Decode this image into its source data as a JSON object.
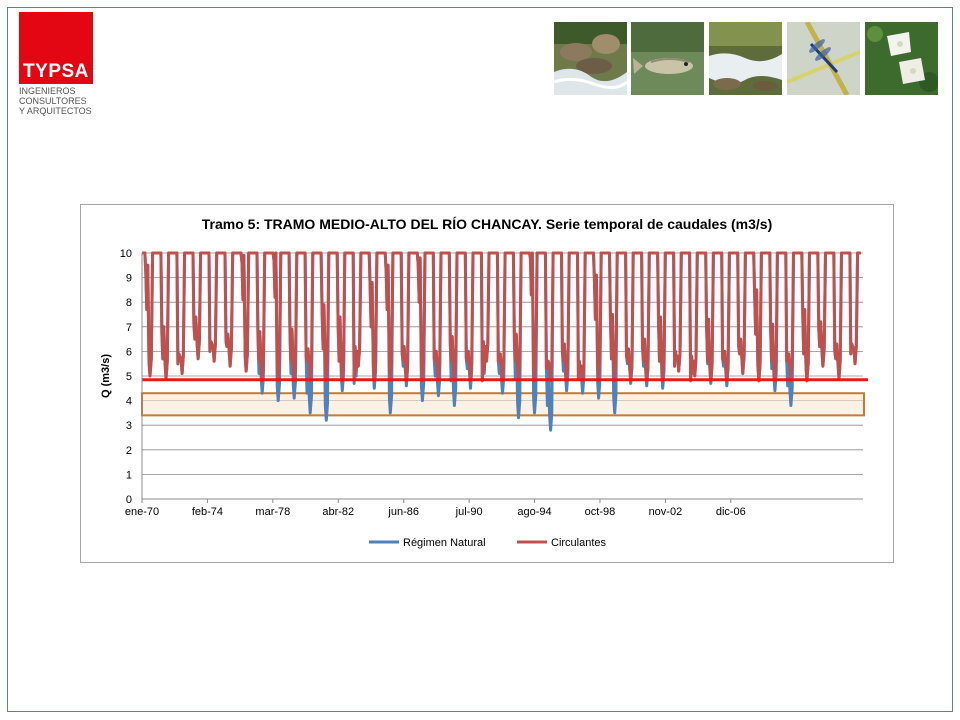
{
  "header": {
    "logo_word": "TYPSA",
    "logo_sub": [
      "INGENIEROS",
      "CONSULTORES",
      "Y ARQUITECTOS"
    ],
    "photos": [
      "river-rocks-photo",
      "fish-photo",
      "stream-rapids-photo",
      "dragonfly-photo",
      "white-flowers-photo"
    ]
  },
  "colors": {
    "logo_red": "#e30613",
    "natural": "#4f81bd",
    "circulantes": "#c0504d",
    "threshold": "#e31b1b",
    "band_edge": "#c97a2b",
    "band_fill": "#fbe3cf"
  },
  "chart_data": {
    "type": "line",
    "title": "Tramo 5: TRAMO MEDIO-ALTO DEL RÍO CHANCAY. Serie temporal de caudales (m3/s)",
    "xlabel": "",
    "ylabel": "Q (m3/s)",
    "ylim": [
      0,
      10
    ],
    "yticks": [
      0,
      1,
      2,
      3,
      4,
      5,
      6,
      7,
      8,
      9,
      10
    ],
    "xticks": [
      "ene-70",
      "feb-74",
      "mar-78",
      "abr-82",
      "jun-86",
      "jul-90",
      "ago-94",
      "oct-98",
      "nov-02",
      "dic-06"
    ],
    "x_range": [
      "ene-70",
      "dic-09"
    ],
    "grid": true,
    "legend": "bottom",
    "threshold_line": 4.85,
    "band": [
      3.4,
      4.3
    ],
    "series": [
      {
        "name": "Régimen Natural",
        "annual_minima": [
          5.0,
          4.9,
          5.1,
          5.7,
          5.6,
          5.4,
          5.2,
          4.3,
          4.0,
          4.1,
          3.5,
          3.2,
          4.4,
          5.4,
          4.5,
          3.5,
          4.6,
          4.0,
          4.2,
          3.8,
          4.5,
          5.6,
          4.3,
          3.3,
          3.5,
          2.8,
          4.4,
          4.3,
          4.1,
          3.5,
          4.7,
          4.6,
          4.5,
          5.2,
          5.0,
          4.7,
          4.6,
          5.1,
          4.8,
          4.4,
          3.8,
          4.8,
          5.4,
          4.9,
          5.5
        ],
        "secondary_peaks": [
          9.2,
          6.7,
          5.5,
          7.1,
          6.0,
          6.4,
          9.6,
          6.5,
          9.7,
          6.6,
          5.8,
          7.6,
          7.1,
          4.7,
          8.5,
          9.2,
          5.9,
          9.5,
          5.7,
          6.3,
          5.7,
          4.8,
          5.6,
          6.4,
          9.8,
          5.3,
          6.0,
          4.9,
          8.8,
          7.2,
          5.8,
          6.2,
          7.1,
          5.4,
          4.8,
          7.0,
          5.7,
          6.2,
          8.2,
          6.8,
          5.6,
          7.4,
          6.9,
          6.0,
          5.9
        ]
      },
      {
        "name": "Circulantes",
        "annual_minima": [
          5.0,
          4.9,
          5.1,
          5.7,
          5.6,
          5.4,
          5.2,
          4.8,
          4.8,
          4.8,
          4.8,
          4.8,
          4.8,
          5.4,
          4.8,
          4.8,
          4.8,
          4.8,
          4.8,
          4.8,
          4.8,
          5.6,
          4.8,
          4.8,
          4.8,
          4.8,
          4.8,
          4.8,
          4.8,
          4.8,
          4.8,
          4.8,
          4.8,
          5.2,
          5.0,
          4.8,
          4.8,
          5.1,
          4.8,
          4.8,
          4.8,
          4.8,
          5.4,
          4.9,
          5.5
        ],
        "secondary_peaks": [
          9.2,
          6.7,
          5.5,
          7.1,
          6.0,
          6.4,
          9.6,
          6.5,
          9.7,
          6.6,
          5.8,
          7.6,
          7.1,
          4.9,
          8.5,
          9.2,
          5.9,
          9.5,
          5.7,
          6.3,
          5.7,
          4.9,
          5.6,
          6.4,
          9.8,
          5.3,
          6.0,
          4.9,
          8.8,
          7.2,
          5.8,
          6.2,
          7.1,
          5.4,
          4.9,
          7.0,
          5.7,
          6.2,
          8.2,
          6.8,
          5.6,
          7.4,
          6.9,
          6.0,
          5.9
        ]
      }
    ]
  }
}
